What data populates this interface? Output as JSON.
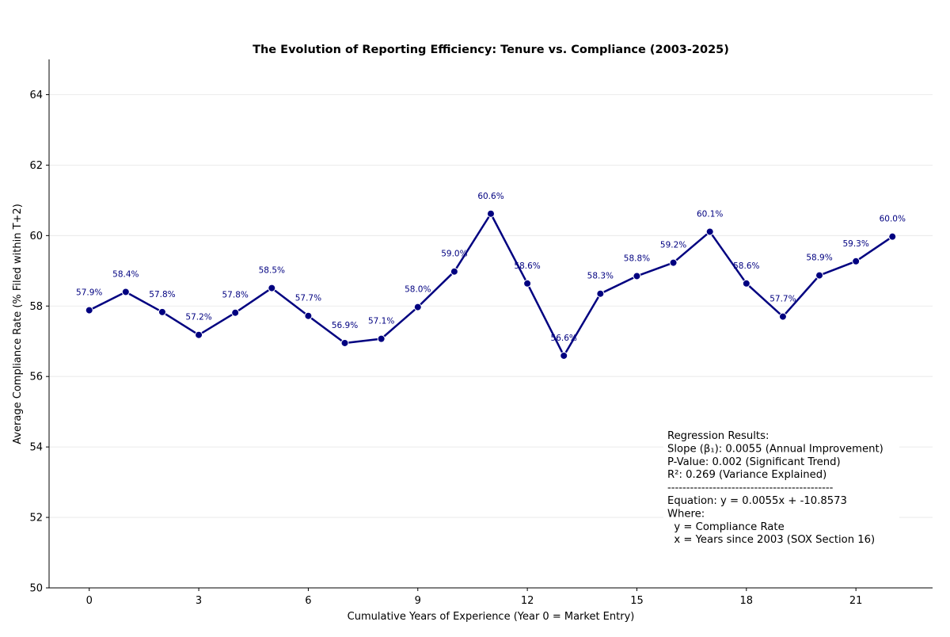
{
  "chart_data": {
    "type": "line",
    "title": "The Evolution of Reporting Efficiency: Tenure vs. Compliance (2003-2025)",
    "xlabel": "Cumulative Years of Experience (Year 0 = Market Entry)",
    "ylabel": "Average Compliance Rate (% Filed within T+2)",
    "xlim": [
      -1.1,
      23.1
    ],
    "ylim": [
      50,
      65
    ],
    "xticks": [
      0,
      3,
      6,
      9,
      12,
      15,
      18,
      21
    ],
    "yticks": [
      50,
      52,
      54,
      56,
      58,
      60,
      62,
      64
    ],
    "grid": "horizontal",
    "line_color": "#000080",
    "x": [
      0,
      1,
      2,
      3,
      4,
      5,
      6,
      7,
      8,
      9,
      10,
      11,
      12,
      13,
      14,
      15,
      16,
      17,
      18,
      19,
      20,
      21,
      22
    ],
    "values": [
      57.88,
      58.4,
      57.83,
      57.18,
      57.81,
      58.51,
      57.72,
      56.95,
      57.07,
      57.97,
      58.98,
      60.62,
      58.64,
      56.59,
      58.35,
      58.85,
      59.23,
      60.11,
      58.64,
      57.7,
      58.87,
      59.27,
      59.97
    ],
    "data_labels": [
      "57.9%",
      "58.4%",
      "57.8%",
      "57.2%",
      "57.8%",
      "58.5%",
      "57.7%",
      "56.9%",
      "57.1%",
      "58.0%",
      "59.0%",
      "60.6%",
      "58.6%",
      "56.6%",
      "58.3%",
      "58.8%",
      "59.2%",
      "60.1%",
      "58.6%",
      "57.7%",
      "58.9%",
      "59.3%",
      "60.0%"
    ],
    "annotation": [
      "Regression Results:",
      "Slope (β₁): 0.0055 (Annual Improvement)",
      "P-Value: 0.002 (Significant Trend)",
      "R²: 0.269 (Variance Explained)",
      "--------------------------------------------",
      "Equation: y = 0.0055x + -10.8573",
      "Where:",
      "  y = Compliance Rate",
      "  x = Years since 2003 (SOX Section 16)"
    ]
  }
}
